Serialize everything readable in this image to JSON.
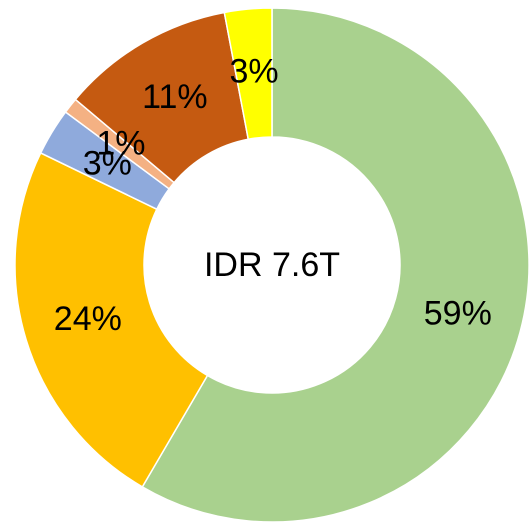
{
  "chart_data": {
    "type": "donut",
    "center_label": "IDR 7.6T",
    "values": [
      59,
      24,
      3,
      1,
      11,
      3
    ],
    "value_labels": [
      "59%",
      "24%",
      "3%",
      "1%",
      "11%",
      "3%"
    ],
    "colors": [
      "#a9d18e",
      "#ffc000",
      "#8faadc",
      "#f4b183",
      "#c55a11",
      "#ffff00"
    ]
  }
}
